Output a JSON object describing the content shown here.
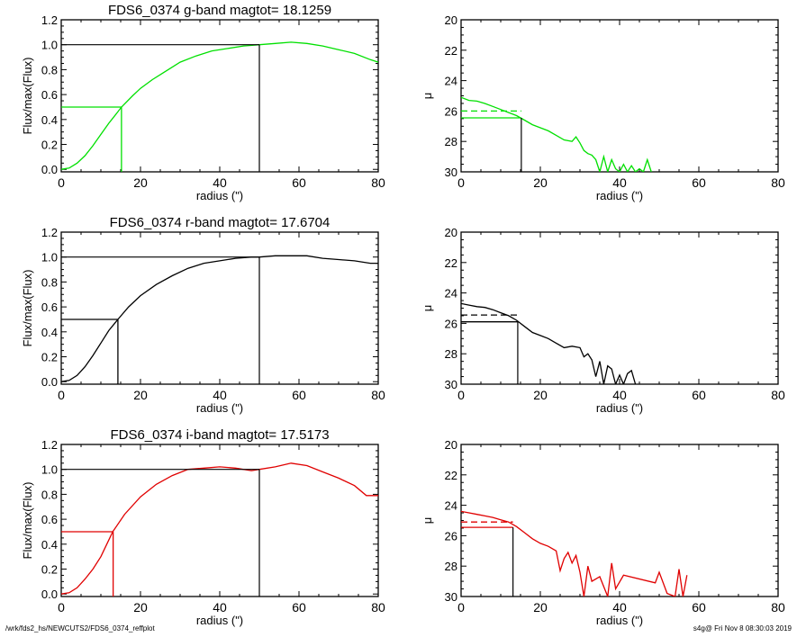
{
  "footer": {
    "path": "/wrk/fds2_hs/NEWCUTS2/FDS6_0374_reffplot",
    "stamp": "s4g@  Fri Nov  8 08:30:03 2019"
  },
  "colors": {
    "g": "#00e000",
    "r": "#000000",
    "i": "#e00000",
    "axis": "#000000"
  },
  "chart_data": [
    {
      "type": "line",
      "band": "g",
      "color": "#00e000",
      "title": "FDS6_0374 g-band  magtot=      18.1259",
      "xlabel": "radius (\")",
      "ylabel": "Flux/max(Flux)",
      "xlim": [
        0,
        80
      ],
      "ylim": [
        -0.02,
        1.2
      ],
      "xticks": [
        "0",
        "20",
        "40",
        "60",
        "80"
      ],
      "yticks": [
        "0.0",
        "0.2",
        "0.4",
        "0.6",
        "0.8",
        "1.0",
        "1.2"
      ],
      "x": [
        0,
        2,
        4,
        6,
        8,
        10,
        12,
        14,
        15.2,
        18,
        20,
        23,
        26,
        30,
        34,
        38,
        42,
        46,
        50,
        54,
        58,
        62,
        66,
        70,
        74,
        78,
        80
      ],
      "y": [
        0,
        0.01,
        0.05,
        0.11,
        0.19,
        0.28,
        0.37,
        0.45,
        0.5,
        0.59,
        0.65,
        0.72,
        0.78,
        0.86,
        0.91,
        0.95,
        0.97,
        0.99,
        1.0,
        1.01,
        1.02,
        1.01,
        0.99,
        0.96,
        0.93,
        0.88,
        0.86
      ],
      "half_light": {
        "radius": 15.2,
        "frac": 0.5
      },
      "total_radius": 50
    },
    {
      "type": "line",
      "band": "g",
      "color": "#00e000",
      "xlabel": "radius (\")",
      "ylabel": "μ",
      "xlim": [
        0,
        80
      ],
      "ylim": [
        30,
        20
      ],
      "xticks": [
        "0",
        "20",
        "40",
        "60",
        "80"
      ],
      "yticks": [
        "20",
        "22",
        "24",
        "26",
        "28",
        "30"
      ],
      "x": [
        0,
        2,
        4,
        6,
        8,
        10,
        12,
        14,
        16,
        18,
        20,
        22,
        24,
        26,
        28,
        29,
        30,
        31,
        32,
        33,
        34,
        35,
        36,
        37,
        38,
        39,
        40,
        41,
        42,
        43,
        44,
        45,
        46,
        47,
        48
      ],
      "y": [
        25.1,
        25.3,
        25.35,
        25.5,
        25.7,
        25.9,
        26.1,
        26.3,
        26.6,
        26.9,
        27.1,
        27.3,
        27.6,
        27.9,
        28.0,
        27.7,
        28.1,
        28.6,
        28.8,
        28.9,
        29.2,
        30,
        29.0,
        30,
        29.2,
        29.8,
        30,
        29.5,
        30,
        29.6,
        30,
        29.8,
        30,
        29.2,
        30
      ],
      "dashed_level": 26.0,
      "solid_level": 26.45,
      "half_light_radius": 15.2
    },
    {
      "type": "line",
      "band": "r",
      "color": "#000000",
      "title": "FDS6_0374 r-band  magtot=      17.6704",
      "xlabel": "radius (\")",
      "ylabel": "Flux/max(Flux)",
      "xlim": [
        0,
        80
      ],
      "ylim": [
        -0.02,
        1.2
      ],
      "xticks": [
        "0",
        "20",
        "40",
        "60",
        "80"
      ],
      "yticks": [
        "0.0",
        "0.2",
        "0.4",
        "0.6",
        "0.8",
        "1.0",
        "1.2"
      ],
      "x": [
        0,
        2,
        4,
        6,
        8,
        10,
        12,
        14.3,
        17,
        20,
        24,
        28,
        32,
        36,
        40,
        44,
        48,
        50,
        54,
        58,
        62,
        66,
        70,
        74,
        78,
        80
      ],
      "y": [
        0,
        0.01,
        0.05,
        0.12,
        0.21,
        0.31,
        0.41,
        0.5,
        0.6,
        0.69,
        0.78,
        0.85,
        0.91,
        0.95,
        0.97,
        0.99,
        1.0,
        1.0,
        1.01,
        1.01,
        1.01,
        0.99,
        0.98,
        0.97,
        0.95,
        0.95
      ],
      "half_light": {
        "radius": 14.3,
        "frac": 0.5
      },
      "total_radius": 50
    },
    {
      "type": "line",
      "band": "r",
      "color": "#000000",
      "xlabel": "radius (\")",
      "ylabel": "μ",
      "xlim": [
        0,
        80
      ],
      "ylim": [
        30,
        20
      ],
      "xticks": [
        "0",
        "20",
        "40",
        "60",
        "80"
      ],
      "yticks": [
        "20",
        "22",
        "24",
        "26",
        "28",
        "30"
      ],
      "x": [
        0,
        2,
        4,
        6,
        8,
        10,
        12,
        14,
        16,
        18,
        20,
        22,
        24,
        26,
        28,
        30,
        31,
        32,
        33,
        34,
        35,
        36,
        37,
        38,
        39,
        40,
        41,
        42,
        43,
        44
      ],
      "y": [
        24.7,
        24.8,
        24.9,
        24.95,
        25.1,
        25.3,
        25.5,
        25.8,
        26.2,
        26.6,
        26.8,
        27.0,
        27.3,
        27.6,
        27.5,
        27.6,
        28.2,
        28.0,
        28.4,
        29.5,
        28.5,
        30,
        28.8,
        29.0,
        30,
        29.4,
        30,
        29.3,
        29.1,
        30
      ],
      "dashed_level": 25.45,
      "solid_level": 25.9,
      "half_light_radius": 14.3
    },
    {
      "type": "line",
      "band": "i",
      "color": "#e00000",
      "title": "FDS6_0374 i-band  magtot=      17.5173",
      "xlabel": "radius (\")",
      "ylabel": "Flux/max(Flux)",
      "xlim": [
        0,
        80
      ],
      "ylim": [
        -0.02,
        1.2
      ],
      "xticks": [
        "0",
        "20",
        "40",
        "60",
        "80"
      ],
      "yticks": [
        "0.0",
        "0.2",
        "0.4",
        "0.6",
        "0.8",
        "1.0",
        "1.2"
      ],
      "x": [
        0,
        2,
        4,
        6,
        8,
        10,
        13,
        16,
        20,
        24,
        28,
        32,
        36,
        40,
        44,
        48,
        50,
        54,
        58,
        62,
        66,
        70,
        74,
        77,
        80
      ],
      "y": [
        0,
        0.01,
        0.05,
        0.12,
        0.2,
        0.3,
        0.5,
        0.64,
        0.78,
        0.88,
        0.95,
        1.0,
        1.01,
        1.02,
        1.01,
        0.99,
        1.0,
        1.02,
        1.05,
        1.03,
        0.98,
        0.93,
        0.87,
        0.79,
        0.79
      ],
      "half_light": {
        "radius": 13.1,
        "frac": 0.5
      },
      "total_radius": 50
    },
    {
      "type": "line",
      "band": "i",
      "color": "#e00000",
      "xlabel": "radius (\")",
      "ylabel": "μ",
      "xlim": [
        0,
        80
      ],
      "ylim": [
        30,
        20
      ],
      "xticks": [
        "0",
        "20",
        "40",
        "60",
        "80"
      ],
      "yticks": [
        "20",
        "22",
        "24",
        "26",
        "28",
        "30"
      ],
      "x": [
        0,
        2,
        4,
        6,
        8,
        10,
        12,
        14,
        16,
        18,
        20,
        22,
        24,
        25,
        26,
        27,
        28,
        29,
        30,
        31,
        32,
        33,
        35,
        37,
        38,
        39,
        41,
        49,
        50,
        52,
        54,
        55,
        56,
        57
      ],
      "y": [
        24.4,
        24.5,
        24.6,
        24.7,
        24.8,
        24.95,
        25.1,
        25.4,
        25.8,
        26.2,
        26.5,
        26.7,
        27.0,
        28.3,
        27.5,
        27.1,
        27.8,
        27.3,
        28.4,
        30,
        28.0,
        29.0,
        28.7,
        30,
        27.8,
        29.5,
        28.6,
        29.1,
        28.4,
        29.8,
        30,
        28.2,
        30,
        28.6
      ],
      "dashed_level": 25.1,
      "solid_level": 25.45,
      "half_light_radius": 13.1
    }
  ]
}
